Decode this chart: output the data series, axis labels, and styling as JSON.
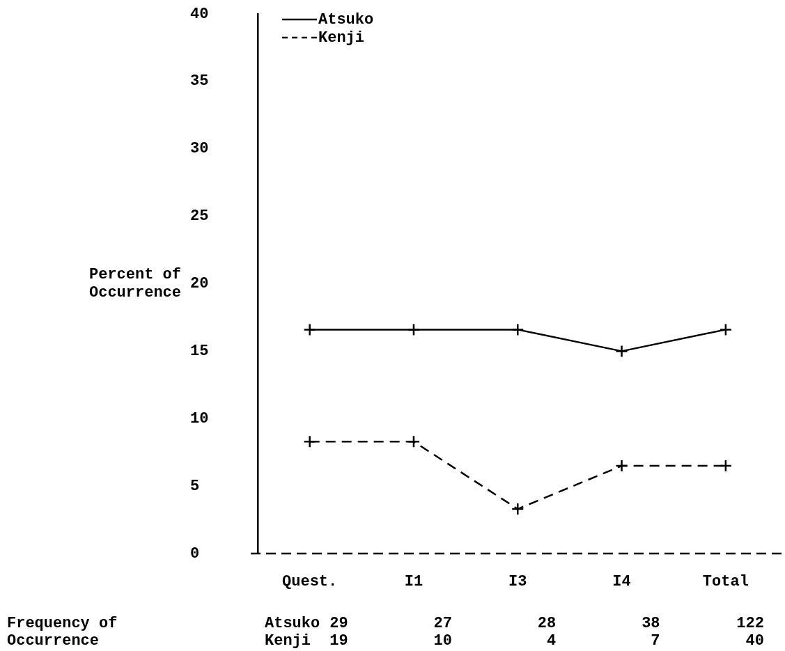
{
  "chart_data": {
    "type": "line",
    "ylabel": "Percent of Occurrence",
    "categories": [
      "Quest.",
      "I1",
      "I3",
      "I4",
      "Total"
    ],
    "series": [
      {
        "name": "Atsuko",
        "color": "#000000",
        "line_style": "solid",
        "values": [
          16.6,
          16.6,
          16.6,
          15.0,
          16.6
        ]
      },
      {
        "name": "Kenji",
        "color": "#000000",
        "line_style": "dashed",
        "values": [
          8.3,
          8.3,
          3.3,
          6.5,
          6.5
        ]
      }
    ],
    "ylim": [
      0,
      40
    ],
    "yticks": [
      0,
      5,
      10,
      15,
      20,
      25,
      30,
      35,
      40
    ],
    "marker": "cross",
    "grid": false,
    "legend": "top left",
    "annotations": [
      "Frequency of Occurrence",
      "Atsuko",
      "29",
      "27",
      "28",
      "38",
      "122",
      "Kenji",
      "19",
      "10",
      "4",
      "7",
      "40"
    ]
  }
}
